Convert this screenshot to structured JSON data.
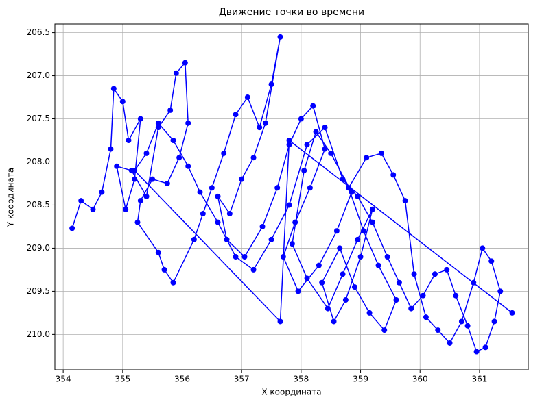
{
  "chart_data": {
    "type": "line",
    "title": "Движение точки во времени",
    "xlabel": "X координата",
    "ylabel": "Y координата",
    "color": "#0000ff",
    "markers": true,
    "grid": true,
    "y_inverted": true,
    "xlim": [
      353.86,
      361.82
    ],
    "ylim": [
      206.4,
      210.41
    ],
    "xticks": [
      354,
      355,
      356,
      357,
      358,
      359,
      360,
      361
    ],
    "yticks": [
      206.5,
      {
        "value": 207,
        "label": "207.0"
      },
      207.5,
      {
        "value": 208,
        "label": "208.0"
      },
      208.5,
      {
        "value": 209,
        "label": "209.0"
      },
      209.5,
      {
        "value": 210,
        "label": "210.0"
      }
    ],
    "x": [
      354.15,
      354.3,
      354.5,
      354.65,
      354.8,
      354.85,
      355.0,
      355.1,
      355.3,
      355.2,
      355.05,
      354.9,
      355.15,
      355.4,
      355.6,
      355.8,
      355.9,
      356.05,
      356.1,
      355.95,
      355.75,
      355.5,
      355.3,
      355.25,
      355.6,
      355.7,
      355.85,
      356.2,
      356.35,
      356.5,
      356.7,
      356.9,
      357.1,
      357.3,
      357.5,
      357.65,
      357.4,
      357.2,
      357.0,
      356.8,
      356.6,
      356.75,
      357.05,
      357.35,
      357.6,
      357.8,
      358.0,
      358.2,
      358.4,
      358.15,
      357.9,
      357.7,
      357.95,
      358.3,
      358.6,
      358.85,
      358.5,
      358.25,
      358.05,
      357.85,
      358.1,
      358.45,
      358.7,
      358.95,
      359.2,
      359.0,
      358.75,
      358.55,
      358.35,
      358.65,
      358.9,
      359.15,
      359.4,
      359.6,
      359.3,
      359.05,
      358.8,
      359.1,
      359.35,
      359.55,
      359.75,
      359.9,
      360.1,
      360.3,
      360.5,
      360.7,
      360.9,
      361.05,
      361.2,
      361.35,
      361.25,
      361.1,
      360.95,
      360.8,
      360.6,
      360.45,
      360.25,
      360.05,
      359.85,
      359.65,
      359.45,
      359.2,
      358.95,
      358.7,
      358.4,
      358.1,
      357.8,
      357.5,
      357.2,
      356.9,
      356.6,
      356.3,
      356.1,
      355.85,
      355.6,
      355.4,
      355.2,
      357.65,
      357.8,
      361.55
    ],
    "values": [
      208.77,
      208.45,
      208.55,
      208.35,
      207.85,
      207.15,
      207.3,
      207.75,
      207.5,
      208.2,
      208.55,
      208.05,
      208.1,
      208.4,
      207.6,
      207.4,
      206.97,
      206.85,
      207.55,
      207.95,
      208.25,
      208.2,
      208.45,
      208.7,
      209.05,
      209.25,
      209.4,
      208.9,
      208.6,
      208.3,
      207.9,
      207.45,
      207.25,
      207.6,
      207.1,
      206.55,
      207.55,
      207.95,
      208.2,
      208.6,
      208.4,
      208.9,
      209.1,
      208.75,
      208.3,
      207.8,
      207.5,
      207.35,
      207.85,
      208.3,
      208.7,
      209.1,
      209.5,
      209.2,
      208.8,
      208.35,
      207.9,
      207.65,
      208.1,
      208.95,
      209.35,
      209.7,
      209.3,
      208.9,
      208.55,
      209.1,
      209.6,
      209.85,
      209.4,
      209.0,
      209.45,
      209.75,
      209.95,
      209.6,
      209.2,
      208.8,
      208.3,
      207.95,
      207.9,
      208.15,
      208.45,
      209.3,
      209.8,
      209.95,
      210.1,
      209.85,
      209.4,
      209.0,
      209.15,
      209.5,
      209.85,
      210.15,
      210.2,
      209.9,
      209.55,
      209.25,
      209.3,
      209.55,
      209.7,
      209.4,
      209.1,
      208.7,
      208.4,
      208.2,
      207.6,
      207.8,
      208.5,
      208.9,
      209.25,
      209.1,
      208.7,
      208.35,
      208.05,
      207.75,
      207.55,
      207.9,
      208.1,
      209.85,
      207.75,
      209.75
    ]
  }
}
